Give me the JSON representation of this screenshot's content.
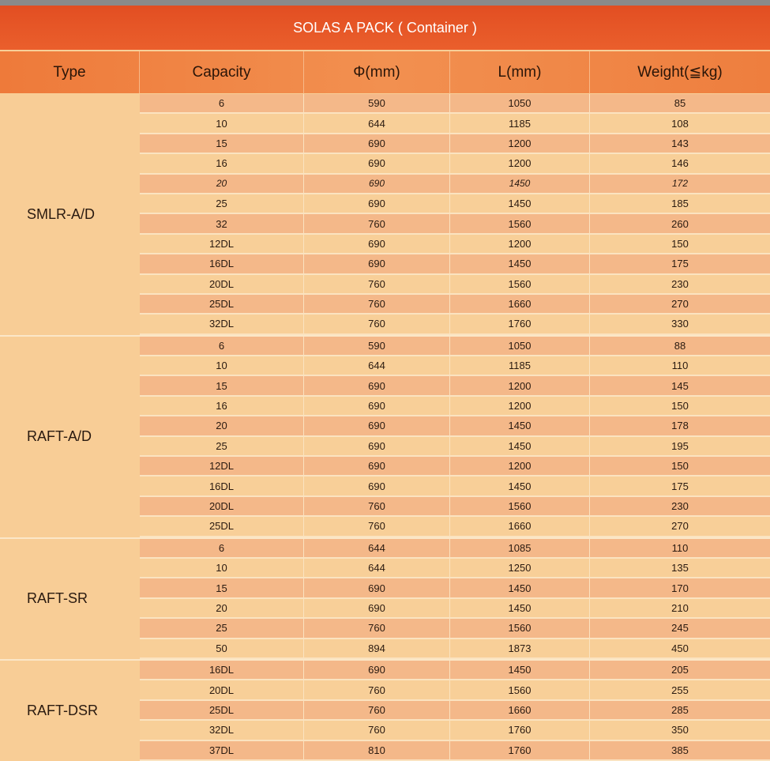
{
  "title": "SOLAS A PACK ( Container )",
  "columns": [
    "Type",
    "Capacity",
    "Φ(mm)",
    "L(mm)",
    "Weight(≦kg)"
  ],
  "colors": {
    "title_bg": "#e24e22",
    "header_bg": "#f08a45",
    "row_dark": "#f4b889",
    "row_light": "#f8cf98"
  },
  "groups": [
    {
      "type": "SMLR-A/D",
      "rows": [
        [
          "6",
          "590",
          "1050",
          "85"
        ],
        [
          "10",
          "644",
          "1185",
          "108"
        ],
        [
          "15",
          "690",
          "1200",
          "143"
        ],
        [
          "16",
          "690",
          "1200",
          "146"
        ],
        [
          "20",
          "690",
          "1450",
          "172"
        ],
        [
          "25",
          "690",
          "1450",
          "185"
        ],
        [
          "32",
          "760",
          "1560",
          "260"
        ],
        [
          "12DL",
          "690",
          "1200",
          "150"
        ],
        [
          "16DL",
          "690",
          "1450",
          "175"
        ],
        [
          "20DL",
          "760",
          "1560",
          "230"
        ],
        [
          "25DL",
          "760",
          "1660",
          "270"
        ],
        [
          "32DL",
          "760",
          "1760",
          "330"
        ]
      ]
    },
    {
      "type": "RAFT-A/D",
      "rows": [
        [
          "6",
          "590",
          "1050",
          "88"
        ],
        [
          "10",
          "644",
          "1185",
          "110"
        ],
        [
          "15",
          "690",
          "1200",
          "145"
        ],
        [
          "16",
          "690",
          "1200",
          "150"
        ],
        [
          "20",
          "690",
          "1450",
          "178"
        ],
        [
          "25",
          "690",
          "1450",
          "195"
        ],
        [
          "12DL",
          "690",
          "1200",
          "150"
        ],
        [
          "16DL",
          "690",
          "1450",
          "175"
        ],
        [
          "20DL",
          "760",
          "1560",
          "230"
        ],
        [
          "25DL",
          "760",
          "1660",
          "270"
        ]
      ]
    },
    {
      "type": "RAFT-SR",
      "rows": [
        [
          "6",
          "644",
          "1085",
          "110"
        ],
        [
          "10",
          "644",
          "1250",
          "135"
        ],
        [
          "15",
          "690",
          "1450",
          "170"
        ],
        [
          "20",
          "690",
          "1450",
          "210"
        ],
        [
          "25",
          "760",
          "1560",
          "245"
        ],
        [
          "50",
          "894",
          "1873",
          "450"
        ]
      ]
    },
    {
      "type": "RAFT-DSR",
      "rows": [
        [
          "16DL",
          "690",
          "1450",
          "205"
        ],
        [
          "20DL",
          "760",
          "1560",
          "255"
        ],
        [
          "25DL",
          "760",
          "1660",
          "285"
        ],
        [
          "32DL",
          "760",
          "1760",
          "350"
        ],
        [
          "37DL",
          "810",
          "1760",
          "385"
        ]
      ]
    }
  ]
}
